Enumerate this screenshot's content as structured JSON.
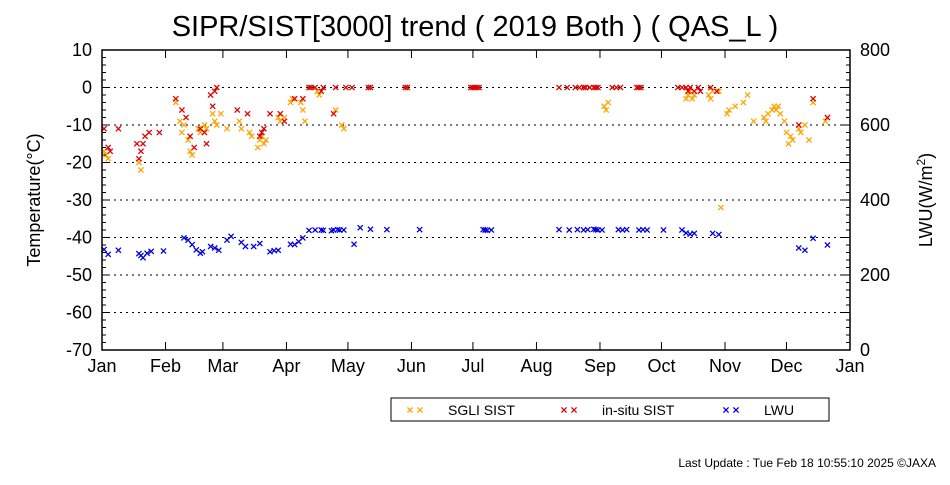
{
  "chart_data": {
    "type": "scatter",
    "title": "SIPR/SIST[3000] trend ( 2019 Both ) ( QAS_L )",
    "ylabel": "Temperature(°C)",
    "y2label_main": "LWU(W/m",
    "y2label_sup": "2",
    "y2label_end": ")",
    "x_ticks": [
      "Jan",
      "Feb",
      "Mar",
      "Apr",
      "May",
      "Jun",
      "Jul",
      "Aug",
      "Sep",
      "Oct",
      "Nov",
      "Dec",
      "Jan"
    ],
    "x_range_days": [
      0,
      365
    ],
    "ylim": [
      -70,
      10
    ],
    "y_ticks": [
      "10",
      "0",
      "-10",
      "-20",
      "-30",
      "-40",
      "-50",
      "-60",
      "-70"
    ],
    "y2lim": [
      0,
      800
    ],
    "y2_ticks": [
      "800",
      "600",
      "400",
      "200",
      "0"
    ],
    "grid": "horizontal dotted",
    "legend_position": "bottom-right",
    "series": [
      {
        "name": "SGLI SIST",
        "color": "#ffa500",
        "axis": "left",
        "points": [
          [
            1,
            -17
          ],
          [
            2,
            -18
          ],
          [
            3,
            -19
          ],
          [
            18,
            -20
          ],
          [
            19,
            -22
          ],
          [
            36,
            -4
          ],
          [
            38,
            -9
          ],
          [
            39,
            -12
          ],
          [
            40,
            -10
          ],
          [
            42,
            -14
          ],
          [
            43,
            -17
          ],
          [
            44,
            -18
          ],
          [
            47,
            -11
          ],
          [
            48,
            -12
          ],
          [
            50,
            -10
          ],
          [
            51,
            -11
          ],
          [
            54,
            -7
          ],
          [
            55,
            -9
          ],
          [
            56,
            -10
          ],
          [
            58,
            -7
          ],
          [
            61,
            -11
          ],
          [
            67,
            -9
          ],
          [
            68,
            -11
          ],
          [
            72,
            -12
          ],
          [
            73,
            -13
          ],
          [
            76,
            -16
          ],
          [
            77,
            -14
          ],
          [
            78,
            -13
          ],
          [
            79,
            -15
          ],
          [
            80,
            -14
          ],
          [
            86,
            -8
          ],
          [
            87,
            -9
          ],
          [
            89,
            -8
          ],
          [
            92,
            -4
          ],
          [
            93,
            -3
          ],
          [
            97,
            -4
          ],
          [
            98,
            -6
          ],
          [
            99,
            -9
          ],
          [
            105,
            -1
          ],
          [
            106,
            -2
          ],
          [
            114,
            -6
          ],
          [
            117,
            -10
          ],
          [
            118,
            -11
          ],
          [
            245,
            -5
          ],
          [
            246,
            -6
          ],
          [
            247,
            -4
          ],
          [
            285,
            -3
          ],
          [
            286,
            -2
          ],
          [
            287,
            -1
          ],
          [
            288,
            -3
          ],
          [
            289,
            -2
          ],
          [
            296,
            -2
          ],
          [
            297,
            -3
          ],
          [
            298,
            -1
          ],
          [
            301,
            -1
          ],
          [
            302,
            -32
          ],
          [
            305,
            -7
          ],
          [
            306,
            -6
          ],
          [
            309,
            -5
          ],
          [
            313,
            -4
          ],
          [
            315,
            -2
          ],
          [
            318,
            -9
          ],
          [
            323,
            -8
          ],
          [
            324,
            -9
          ],
          [
            325,
            -7
          ],
          [
            327,
            -6
          ],
          [
            328,
            -5
          ],
          [
            329,
            -6
          ],
          [
            330,
            -5
          ],
          [
            331,
            -7
          ],
          [
            333,
            -9
          ],
          [
            334,
            -12
          ],
          [
            335,
            -15
          ],
          [
            336,
            -13
          ],
          [
            337,
            -14
          ],
          [
            340,
            -11
          ],
          [
            341,
            -12
          ],
          [
            343,
            -10
          ],
          [
            345,
            -14
          ],
          [
            347,
            -4
          ],
          [
            353,
            -9
          ],
          [
            354,
            -8
          ]
        ]
      },
      {
        "name": "in-situ SIST",
        "color": "#e00000",
        "axis": "left",
        "points": [
          [
            1,
            -11
          ],
          [
            3,
            -16
          ],
          [
            4,
            -17
          ],
          [
            8,
            -11
          ],
          [
            17,
            -15
          ],
          [
            18,
            -19
          ],
          [
            19,
            -17
          ],
          [
            20,
            -15
          ],
          [
            21,
            -13
          ],
          [
            23,
            -12
          ],
          [
            28,
            -12
          ],
          [
            36,
            -3
          ],
          [
            39,
            -6
          ],
          [
            41,
            -8
          ],
          [
            43,
            -13
          ],
          [
            45,
            -16
          ],
          [
            48,
            -11
          ],
          [
            50,
            -12
          ],
          [
            51,
            -15
          ],
          [
            53,
            -2
          ],
          [
            54,
            -5
          ],
          [
            55,
            -1
          ],
          [
            56,
            0
          ],
          [
            66,
            -6
          ],
          [
            71,
            -7
          ],
          [
            77,
            -13
          ],
          [
            78,
            -12
          ],
          [
            79,
            -11
          ],
          [
            82,
            -7
          ],
          [
            87,
            -7
          ],
          [
            89,
            -9
          ],
          [
            94,
            -3
          ],
          [
            98,
            -3
          ],
          [
            101,
            0
          ],
          [
            102,
            0
          ],
          [
            104,
            0
          ],
          [
            107,
            -1
          ],
          [
            108,
            0
          ],
          [
            113,
            -7
          ],
          [
            114,
            0
          ],
          [
            119,
            0
          ],
          [
            122,
            0
          ],
          [
            130,
            0
          ],
          [
            131,
            0
          ],
          [
            148,
            0
          ],
          [
            149,
            0
          ],
          [
            180,
            0
          ],
          [
            181,
            0
          ],
          [
            182,
            0
          ],
          [
            183,
            0
          ],
          [
            184,
            0
          ],
          [
            223,
            0
          ],
          [
            227,
            0
          ],
          [
            231,
            0
          ],
          [
            233,
            0
          ],
          [
            235,
            0
          ],
          [
            236,
            0
          ],
          [
            238,
            0
          ],
          [
            240,
            0
          ],
          [
            241,
            0
          ],
          [
            242,
            0
          ],
          [
            249,
            0
          ],
          [
            251,
            0
          ],
          [
            253,
            0
          ],
          [
            261,
            0
          ],
          [
            262,
            0
          ],
          [
            263,
            0
          ],
          [
            281,
            0
          ],
          [
            283,
            0
          ],
          [
            285,
            0
          ],
          [
            286,
            -1
          ],
          [
            287,
            0
          ],
          [
            289,
            -1
          ],
          [
            291,
            0
          ],
          [
            292,
            -1
          ],
          [
            297,
            0
          ],
          [
            300,
            -1
          ],
          [
            340,
            -10
          ],
          [
            347,
            -3
          ],
          [
            354,
            -8
          ]
        ]
      },
      {
        "name": "LWU",
        "color": "#0000e0",
        "axis": "right",
        "points": [
          [
            1,
            268
          ],
          [
            3,
            255
          ],
          [
            8,
            266
          ],
          [
            18,
            257
          ],
          [
            19,
            252
          ],
          [
            20,
            246
          ],
          [
            22,
            258
          ],
          [
            24,
            263
          ],
          [
            30,
            264
          ],
          [
            40,
            299
          ],
          [
            42,
            293
          ],
          [
            44,
            281
          ],
          [
            46,
            267
          ],
          [
            48,
            258
          ],
          [
            49,
            262
          ],
          [
            53,
            276
          ],
          [
            55,
            272
          ],
          [
            57,
            266
          ],
          [
            61,
            293
          ],
          [
            63,
            303
          ],
          [
            68,
            287
          ],
          [
            70,
            276
          ],
          [
            74,
            276
          ],
          [
            77,
            284
          ],
          [
            82,
            262
          ],
          [
            84,
            265
          ],
          [
            86,
            266
          ],
          [
            92,
            282
          ],
          [
            94,
            281
          ],
          [
            96,
            289
          ],
          [
            98,
            299
          ],
          [
            101,
            319
          ],
          [
            104,
            320
          ],
          [
            107,
            320
          ],
          [
            108,
            319
          ],
          [
            112,
            318
          ],
          [
            113,
            320
          ],
          [
            115,
            321
          ],
          [
            116,
            320
          ],
          [
            118,
            320
          ],
          [
            123,
            282
          ],
          [
            126,
            326
          ],
          [
            131,
            322
          ],
          [
            139,
            321
          ],
          [
            155,
            321
          ],
          [
            186,
            321
          ],
          [
            187,
            320
          ],
          [
            188,
            319
          ],
          [
            190,
            320
          ],
          [
            223,
            321
          ],
          [
            228,
            320
          ],
          [
            232,
            321
          ],
          [
            235,
            320
          ],
          [
            237,
            321
          ],
          [
            240,
            322
          ],
          [
            241,
            321
          ],
          [
            242,
            320
          ],
          [
            244,
            320
          ],
          [
            252,
            321
          ],
          [
            254,
            320
          ],
          [
            256,
            321
          ],
          [
            262,
            320
          ],
          [
            264,
            321
          ],
          [
            266,
            320
          ],
          [
            274,
            320
          ],
          [
            283,
            320
          ],
          [
            285,
            312
          ],
          [
            287,
            309
          ],
          [
            289,
            311
          ],
          [
            298,
            311
          ],
          [
            301,
            308
          ],
          [
            340,
            272
          ],
          [
            343,
            266
          ],
          [
            347,
            298
          ],
          [
            354,
            280
          ]
        ]
      }
    ],
    "footer": "Last Update : Tue Feb 18 10:55:10 2025  ©JAXA"
  }
}
